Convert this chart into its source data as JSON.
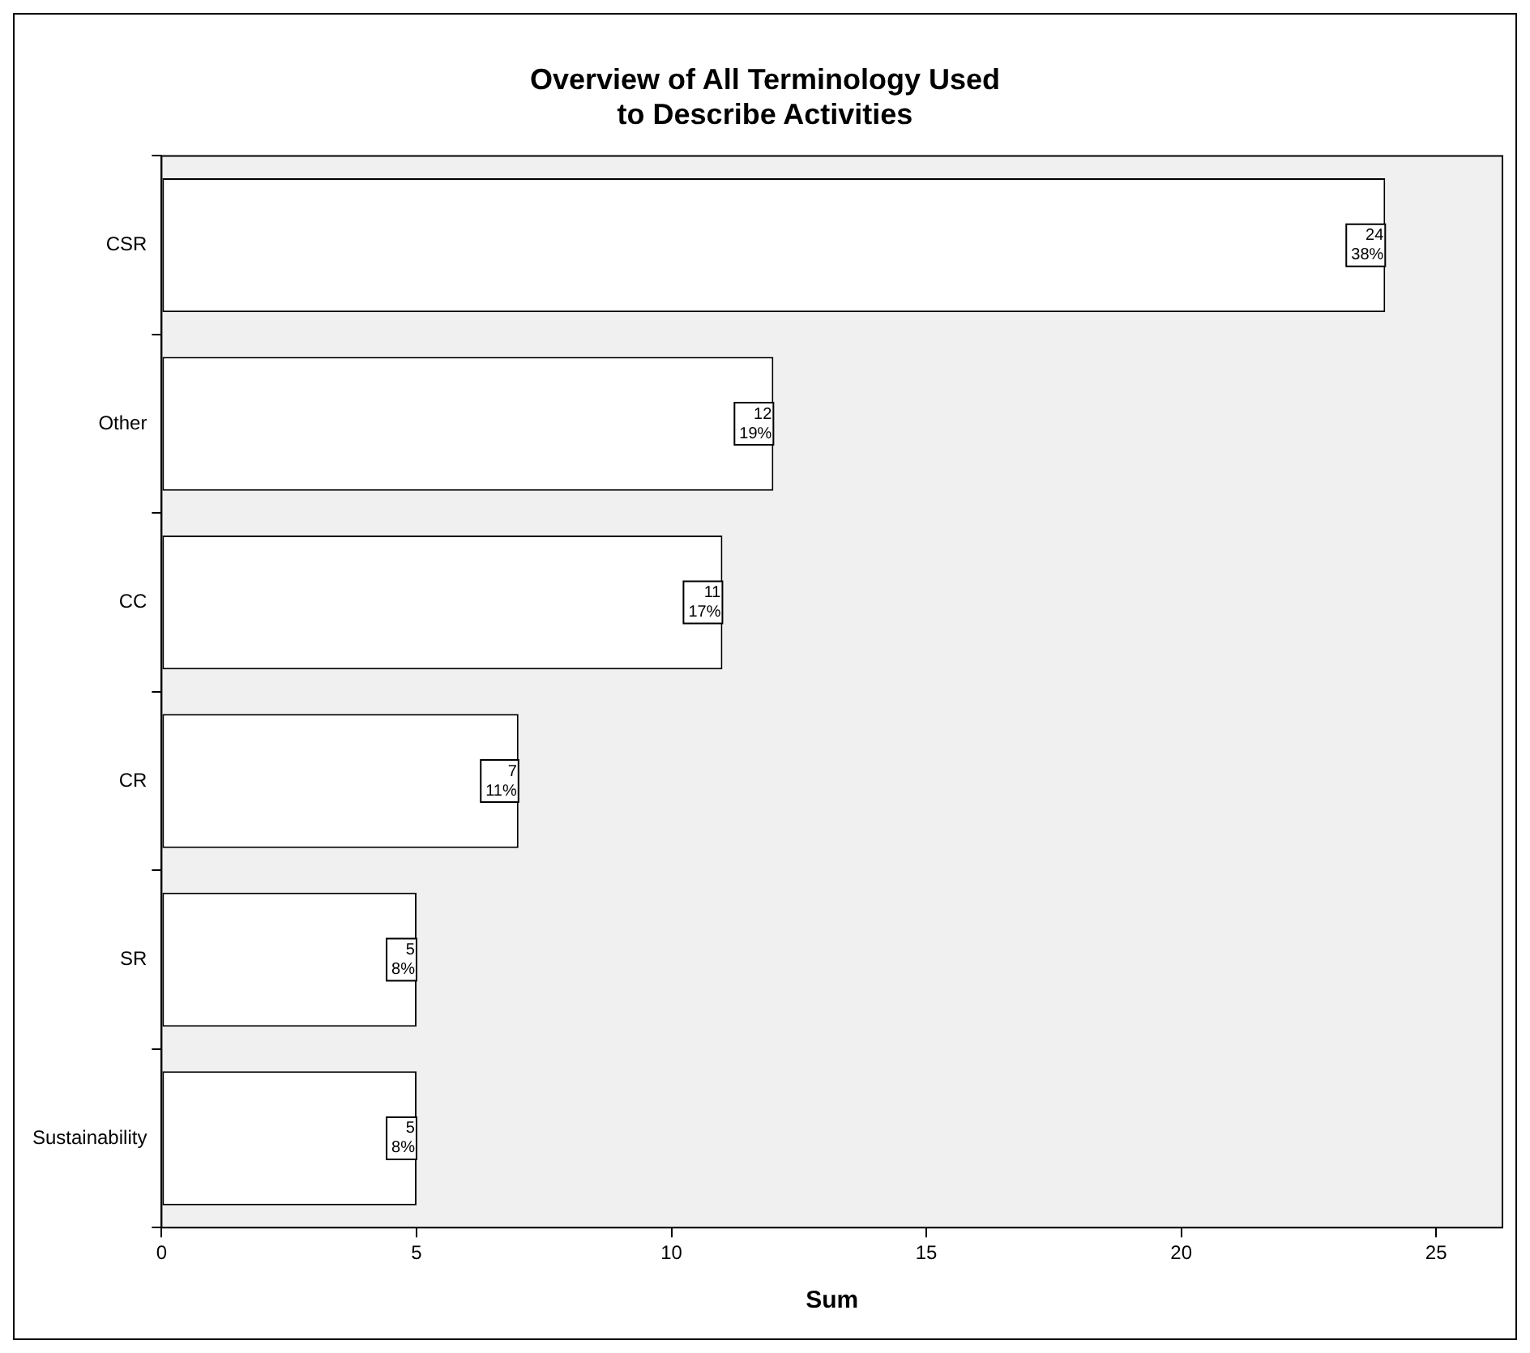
{
  "chart_data": {
    "type": "bar",
    "orientation": "horizontal",
    "title": "Overview of All Terminology Used\nto Describe Activities",
    "xlabel": "Sum",
    "categories": [
      "CSR",
      "Other",
      "CC",
      "CR",
      "SR",
      "Sustainability"
    ],
    "values": [
      24,
      12,
      11,
      7,
      5,
      5
    ],
    "value_labels": [
      "24\n38%",
      "12\n19%",
      "11\n17%",
      "7\n11%",
      "5\n8%",
      "5\n8%"
    ],
    "color": "#ffffff",
    "xlim": [
      0,
      26.3
    ],
    "xticks": [
      0,
      5,
      10,
      15,
      20,
      25
    ]
  }
}
